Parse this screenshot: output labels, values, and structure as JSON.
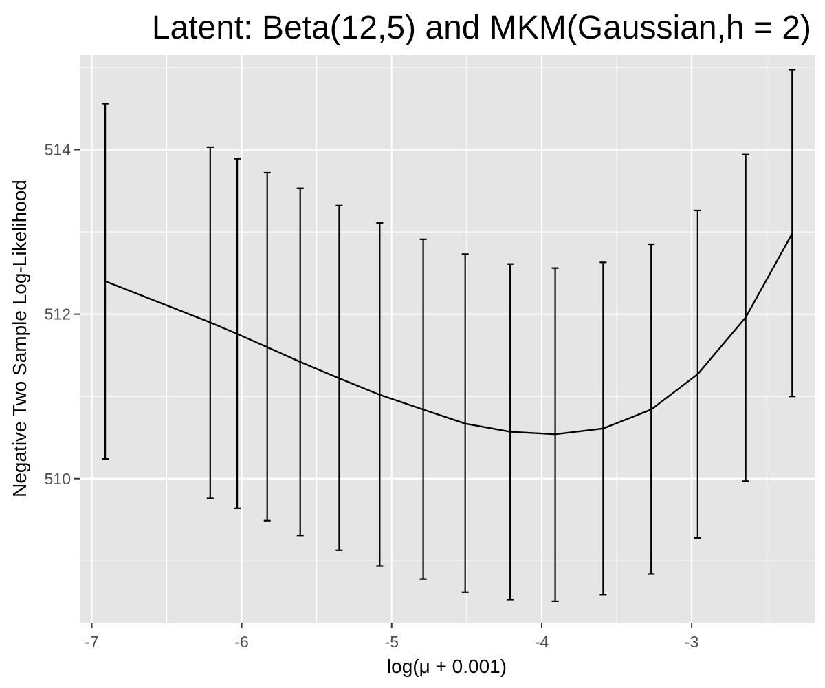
{
  "chart_data": {
    "type": "line",
    "title": "Latent: Beta(12,5) and MKM(Gaussian,h = 2)",
    "xlabel": "log(μ + 0.001)",
    "ylabel": "Negative Two Sample Log-Likelihood",
    "xlim": [
      -7.08,
      -2.18
    ],
    "ylim": [
      508.25,
      515.15
    ],
    "x_ticks": [
      -7,
      -6,
      -5,
      -4,
      -3
    ],
    "x_tick_labels": [
      "-7",
      "-6",
      "-5",
      "-4",
      "-3"
    ],
    "y_ticks": [
      510,
      512,
      514
    ],
    "y_tick_labels": [
      "510",
      "512",
      "514"
    ],
    "grid": true,
    "legend": "none",
    "series": [
      {
        "x": [
          -6.91,
          -6.21,
          -6.03,
          -5.83,
          -5.61,
          -5.35,
          -5.08,
          -4.79,
          -4.51,
          -4.21,
          -3.91,
          -3.59,
          -3.27,
          -2.96,
          -2.64,
          -2.33
        ],
        "y": [
          512.4,
          511.9,
          511.76,
          511.6,
          511.42,
          511.22,
          511.02,
          510.84,
          510.67,
          510.57,
          510.54,
          510.61,
          510.84,
          511.27,
          511.96,
          512.98
        ],
        "lower": [
          510.24,
          509.76,
          509.64,
          509.49,
          509.31,
          509.13,
          508.94,
          508.78,
          508.62,
          508.53,
          508.51,
          508.59,
          508.84,
          509.28,
          509.97,
          511.0
        ],
        "upper": [
          514.56,
          514.03,
          513.89,
          513.72,
          513.53,
          513.32,
          513.11,
          512.91,
          512.73,
          512.61,
          512.56,
          512.63,
          512.85,
          513.26,
          513.94,
          514.97
        ]
      }
    ],
    "colors": {
      "panel": "#e5e5e5",
      "grid": "#ffffff",
      "line": "#000000",
      "tick_text": "#4d4d4d",
      "tick_mark": "#333333"
    }
  }
}
